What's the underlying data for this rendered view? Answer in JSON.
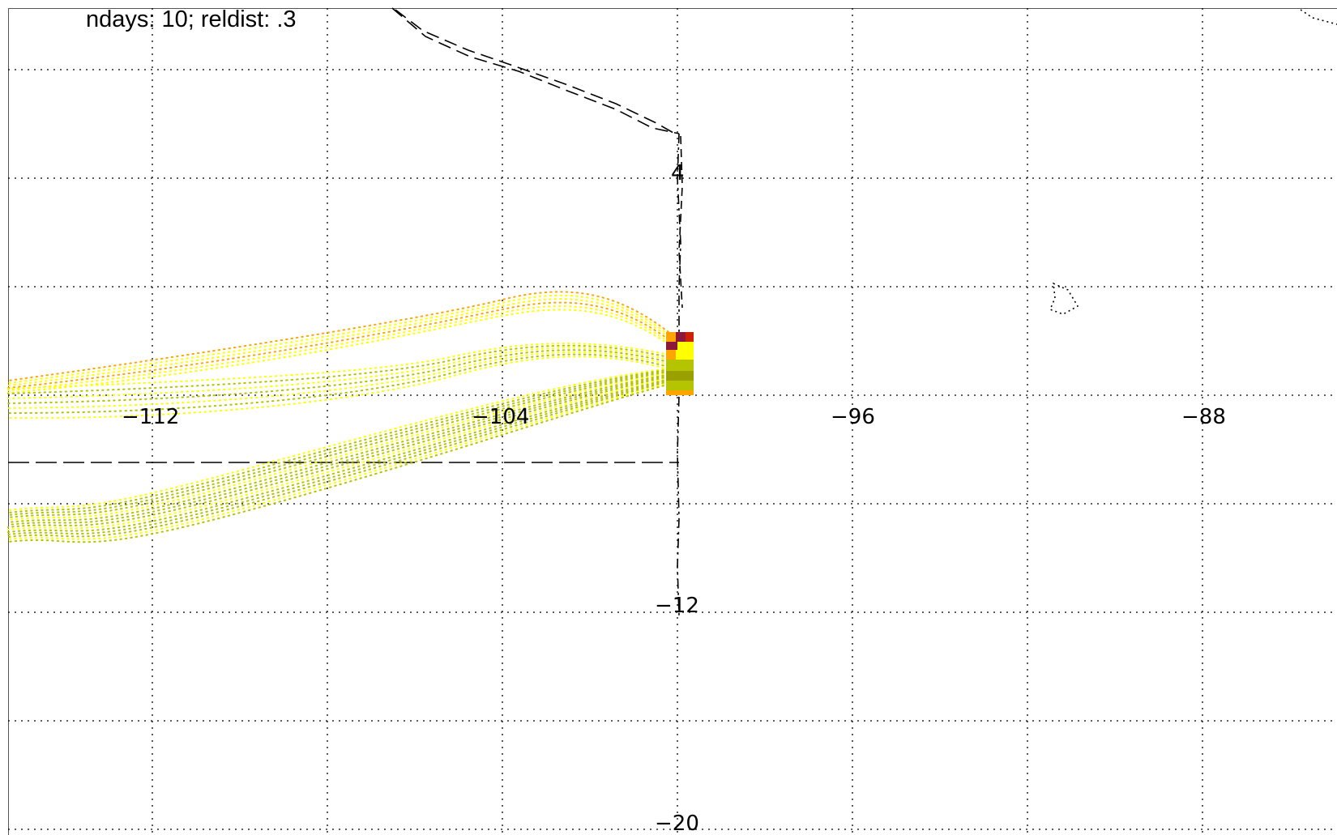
{
  "map": {
    "title": "ndays: 10; reldist: .3",
    "lon_labels": [
      "−112",
      "−104",
      "−96",
      "−88"
    ],
    "lat_labels": [
      "4",
      "−12",
      "−20"
    ],
    "colors": {
      "grid": "#000000",
      "boundary": "#000000",
      "trajectory_yellow": "#ffff00",
      "trajectory_olive": "#b5c400",
      "trajectory_orange": "#ffa500",
      "cell_red": "#cc2200",
      "cell_maroon": "#8b1a3a",
      "cell_olive": "#9aa000"
    }
  }
}
